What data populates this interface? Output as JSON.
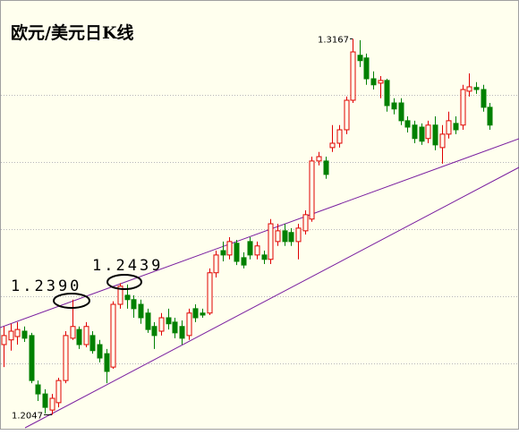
{
  "chart_data": {
    "type": "candlestick",
    "title": "欧元/美元日K线",
    "open": [
      1.2256,
      1.227,
      1.228,
      1.2296,
      1.2283,
      1.2136,
      1.2109,
      1.2061,
      1.2083,
      1.2149,
      1.2275,
      1.2301,
      1.2256,
      1.2283,
      1.2256,
      1.2229,
      1.2189,
      1.2376,
      1.2403,
      1.239,
      1.2376,
      1.235,
      1.231,
      1.2296,
      1.2336,
      1.2323,
      1.231,
      1.2283,
      1.2363,
      1.235,
      1.235,
      1.247,
      1.2536,
      1.2523,
      1.2558,
      1.2515,
      1.2563,
      1.2523,
      1.2523,
      1.251,
      1.2563,
      1.2595,
      1.259,
      1.2563,
      1.2595,
      1.263,
      1.2803,
      1.2803,
      1.2843,
      1.2856,
      1.2896,
      1.2984,
      1.3118,
      1.311,
      1.3048,
      1.3035,
      1.3043,
      1.2976,
      1.2976,
      1.2923,
      1.291,
      1.2904,
      1.287,
      1.291,
      1.2843,
      1.2883,
      1.2915,
      1.291,
      1.3011,
      1.3022,
      1.3016,
      1.2963
    ],
    "high": [
      1.231,
      1.2318,
      1.2323,
      1.231,
      1.2291,
      1.2149,
      1.2123,
      1.2109,
      1.2157,
      1.2296,
      1.239,
      1.231,
      1.2323,
      1.2296,
      1.227,
      1.2243,
      1.2385,
      1.2439,
      1.2435,
      1.2403,
      1.239,
      1.2363,
      1.2323,
      1.235,
      1.2363,
      1.2336,
      1.2328,
      1.2363,
      1.2376,
      1.2363,
      1.2483,
      1.2536,
      1.2563,
      1.2576,
      1.2568,
      1.2531,
      1.2576,
      1.2563,
      1.2536,
      1.263,
      1.2616,
      1.2616,
      1.2603,
      1.2616,
      1.2656,
      1.2816,
      1.283,
      1.2816,
      1.291,
      1.291,
      1.2995,
      1.3167,
      1.3163,
      1.3123,
      1.307,
      1.3056,
      1.3048,
      1.299,
      1.299,
      1.2936,
      1.2923,
      1.2915,
      1.2923,
      1.2936,
      1.291,
      1.295,
      1.2936,
      1.303,
      1.3064,
      1.3038,
      1.303,
      1.2976
    ],
    "low": [
      1.2189,
      1.2238,
      1.2256,
      1.2264,
      1.2141,
      1.2088,
      1.2051,
      1.2047,
      1.2069,
      1.2141,
      1.227,
      1.2243,
      1.2248,
      1.2229,
      1.2203,
      1.2141,
      1.2184,
      1.2363,
      1.2363,
      1.2336,
      1.2318,
      1.2291,
      1.2243,
      1.2283,
      1.2301,
      1.2275,
      1.2256,
      1.227,
      1.2323,
      1.2336,
      1.2344,
      1.2456,
      1.2504,
      1.251,
      1.2493,
      1.2483,
      1.251,
      1.251,
      1.2496,
      1.2496,
      1.255,
      1.255,
      1.255,
      1.251,
      1.2584,
      1.2622,
      1.279,
      1.275,
      1.283,
      1.2843,
      1.2883,
      1.2976,
      1.3083,
      1.303,
      1.3016,
      1.299,
      1.295,
      1.2942,
      1.291,
      1.2888,
      1.2856,
      1.2851,
      1.2856,
      1.2835,
      1.2795,
      1.287,
      1.2883,
      1.2896,
      1.2995,
      1.3003,
      1.295,
      1.2896
    ],
    "close": [
      1.2283,
      1.2296,
      1.2301,
      1.2275,
      1.2149,
      1.2109,
      1.2069,
      1.2096,
      1.2149,
      1.2283,
      1.231,
      1.2256,
      1.231,
      1.2238,
      1.2216,
      1.2176,
      1.2376,
      1.243,
      1.239,
      1.2363,
      1.2336,
      1.2301,
      1.2283,
      1.2336,
      1.2318,
      1.2291,
      1.2275,
      1.235,
      1.2336,
      1.2344,
      1.247,
      1.2523,
      1.2523,
      1.2563,
      1.2504,
      1.2493,
      1.2523,
      1.255,
      1.251,
      1.2616,
      1.2595,
      1.2563,
      1.2563,
      1.2603,
      1.2643,
      1.2803,
      1.2816,
      1.2763,
      1.2856,
      1.2896,
      1.2984,
      1.3128,
      1.3102,
      1.3048,
      1.303,
      1.3043,
      1.2968,
      1.2958,
      1.2923,
      1.2904,
      1.287,
      1.2862,
      1.291,
      1.2851,
      1.2883,
      1.2923,
      1.2896,
      1.3016,
      1.3024,
      1.3016,
      1.2963,
      1.291
    ],
    "ylim": [
      1.2,
      1.33
    ],
    "yticks": [
      1.22,
      1.24,
      1.26,
      1.28,
      1.3
    ],
    "grid": true,
    "up_color": "#e00000",
    "down_color": "#008000",
    "annotations": [
      "1.2390",
      "1.2439"
    ]
  }
}
